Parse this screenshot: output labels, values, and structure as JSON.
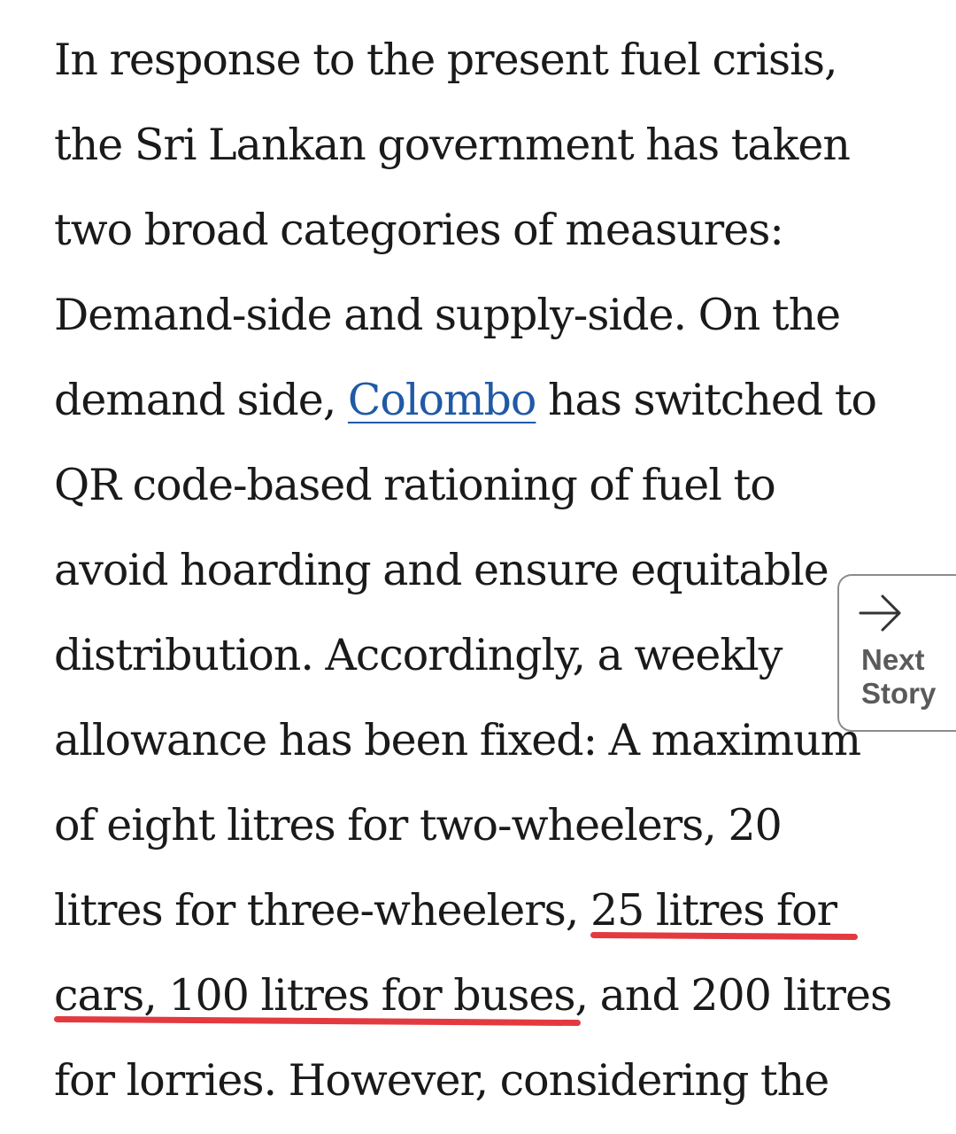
{
  "article": {
    "line1": "In response to the present fuel crisis,",
    "line2": "the Sri Lankan government has taken",
    "line3": "two broad categories of measures:",
    "line4": "Demand-side and supply-side. On the",
    "line5_pre": "demand side, ",
    "line5_link": "Colombo",
    "line5_post": " has switched to",
    "line6": "QR code-based rationing of fuel to",
    "line7": "avoid hoarding and ensure equitable",
    "line8": "distribution. Accordingly, a weekly",
    "line9": "allowance has been fixed: A maximum",
    "line10": "of eight litres for two-wheelers, 20",
    "line11_pre": "litres for three-wheelers, ",
    "line11_marked": "25 litres for",
    "line12_marked": "cars, 100 litres for buses",
    "line12_post": ", and 200 litres",
    "line13": "for lorries. However, considering the"
  },
  "next_story": {
    "line1": "Next",
    "line2": "Story",
    "icon": "arrow-right-icon"
  },
  "colors": {
    "link": "#1f5aa6",
    "highlight_underline": "#e33a40",
    "text": "#1a1a1a"
  }
}
